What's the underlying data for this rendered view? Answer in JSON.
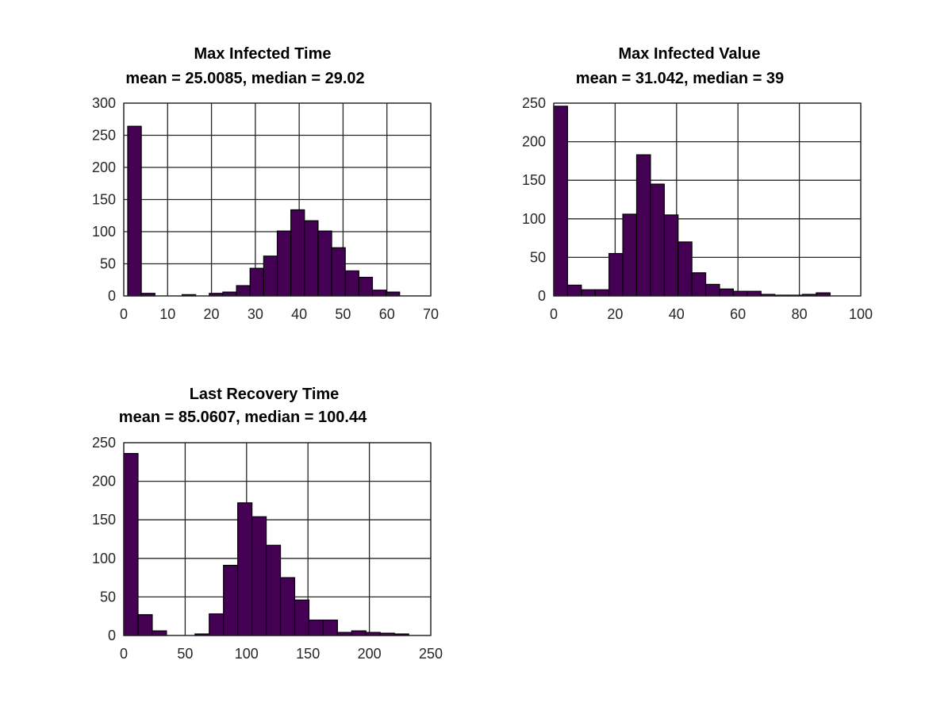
{
  "chart_data": [
    {
      "type": "bar",
      "title": "Max Infected Time",
      "subtitle": "mean = 25.0085, median = 29.02",
      "xlim": [
        0,
        70
      ],
      "ylim": [
        0,
        300
      ],
      "xticks": [
        "0",
        "10",
        "20",
        "30",
        "40",
        "50",
        "60",
        "70"
      ],
      "yticks": [
        "0",
        "50",
        "100",
        "150",
        "200",
        "250",
        "300"
      ],
      "grid": true,
      "bar_color": "#440154",
      "bins": [
        {
          "x0": 0.9,
          "x1": 4.0,
          "value": 264
        },
        {
          "x0": 4.0,
          "x1": 7.1,
          "value": 4
        },
        {
          "x0": 7.1,
          "x1": 10.2,
          "value": 0
        },
        {
          "x0": 10.2,
          "x1": 13.3,
          "value": 0
        },
        {
          "x0": 13.3,
          "x1": 16.4,
          "value": 2
        },
        {
          "x0": 16.4,
          "x1": 19.5,
          "value": 0
        },
        {
          "x0": 19.5,
          "x1": 22.6,
          "value": 4
        },
        {
          "x0": 22.6,
          "x1": 25.7,
          "value": 6
        },
        {
          "x0": 25.7,
          "x1": 28.8,
          "value": 16
        },
        {
          "x0": 28.8,
          "x1": 31.9,
          "value": 43
        },
        {
          "x0": 31.9,
          "x1": 35.0,
          "value": 62
        },
        {
          "x0": 35.0,
          "x1": 38.1,
          "value": 101
        },
        {
          "x0": 38.1,
          "x1": 41.2,
          "value": 134
        },
        {
          "x0": 41.2,
          "x1": 44.3,
          "value": 117
        },
        {
          "x0": 44.3,
          "x1": 47.4,
          "value": 101
        },
        {
          "x0": 47.4,
          "x1": 50.5,
          "value": 75
        },
        {
          "x0": 50.5,
          "x1": 53.6,
          "value": 39
        },
        {
          "x0": 53.6,
          "x1": 56.7,
          "value": 29
        },
        {
          "x0": 56.7,
          "x1": 59.8,
          "value": 9
        },
        {
          "x0": 59.8,
          "x1": 62.9,
          "value": 6
        }
      ]
    },
    {
      "type": "bar",
      "title": "Max Infected Value",
      "subtitle": "mean = 31.042, median = 39",
      "xlim": [
        0,
        100
      ],
      "ylim": [
        0,
        250
      ],
      "xticks": [
        "0",
        "20",
        "40",
        "60",
        "80",
        "100"
      ],
      "yticks": [
        "0",
        "50",
        "100",
        "150",
        "200",
        "250"
      ],
      "grid": true,
      "bar_color": "#440154",
      "bins": [
        {
          "x0": 0,
          "x1": 4.5,
          "value": 246
        },
        {
          "x0": 4.5,
          "x1": 9,
          "value": 14
        },
        {
          "x0": 9,
          "x1": 13.5,
          "value": 8
        },
        {
          "x0": 13.5,
          "x1": 18,
          "value": 8
        },
        {
          "x0": 18,
          "x1": 22.5,
          "value": 55
        },
        {
          "x0": 22.5,
          "x1": 27,
          "value": 106
        },
        {
          "x0": 27,
          "x1": 31.5,
          "value": 183
        },
        {
          "x0": 31.5,
          "x1": 36,
          "value": 145
        },
        {
          "x0": 36,
          "x1": 40.5,
          "value": 105
        },
        {
          "x0": 40.5,
          "x1": 45,
          "value": 70
        },
        {
          "x0": 45,
          "x1": 49.5,
          "value": 30
        },
        {
          "x0": 49.5,
          "x1": 54,
          "value": 15
        },
        {
          "x0": 54,
          "x1": 58.5,
          "value": 9
        },
        {
          "x0": 58.5,
          "x1": 63,
          "value": 6
        },
        {
          "x0": 63,
          "x1": 67.5,
          "value": 6
        },
        {
          "x0": 67.5,
          "x1": 72,
          "value": 2
        },
        {
          "x0": 72,
          "x1": 76.5,
          "value": 1
        },
        {
          "x0": 76.5,
          "x1": 81,
          "value": 1
        },
        {
          "x0": 81,
          "x1": 85.5,
          "value": 2
        },
        {
          "x0": 85.5,
          "x1": 90,
          "value": 4
        }
      ]
    },
    {
      "type": "bar",
      "title": "Last Recovery Time",
      "subtitle": "mean = 85.0607, median = 100.44",
      "xlim": [
        0,
        250
      ],
      "ylim": [
        0,
        250
      ],
      "xticks": [
        "0",
        "50",
        "100",
        "150",
        "200",
        "250"
      ],
      "yticks": [
        "0",
        "50",
        "100",
        "150",
        "200",
        "250"
      ],
      "grid": true,
      "bar_color": "#440154",
      "bins": [
        {
          "x0": 0,
          "x1": 11.6,
          "value": 236
        },
        {
          "x0": 11.6,
          "x1": 23.2,
          "value": 27
        },
        {
          "x0": 23.2,
          "x1": 34.8,
          "value": 6
        },
        {
          "x0": 34.8,
          "x1": 46.4,
          "value": 0
        },
        {
          "x0": 46.4,
          "x1": 58.0,
          "value": 0
        },
        {
          "x0": 58.0,
          "x1": 69.6,
          "value": 2
        },
        {
          "x0": 69.6,
          "x1": 81.2,
          "value": 28
        },
        {
          "x0": 81.2,
          "x1": 92.8,
          "value": 91
        },
        {
          "x0": 92.8,
          "x1": 104.4,
          "value": 172
        },
        {
          "x0": 104.4,
          "x1": 116.0,
          "value": 154
        },
        {
          "x0": 116.0,
          "x1": 127.6,
          "value": 117
        },
        {
          "x0": 127.6,
          "x1": 139.2,
          "value": 75
        },
        {
          "x0": 139.2,
          "x1": 150.8,
          "value": 46
        },
        {
          "x0": 150.8,
          "x1": 162.4,
          "value": 20
        },
        {
          "x0": 162.4,
          "x1": 174.0,
          "value": 20
        },
        {
          "x0": 174.0,
          "x1": 185.6,
          "value": 4
        },
        {
          "x0": 185.6,
          "x1": 197.2,
          "value": 6
        },
        {
          "x0": 197.2,
          "x1": 208.8,
          "value": 4
        },
        {
          "x0": 208.8,
          "x1": 220.4,
          "value": 3
        },
        {
          "x0": 220.4,
          "x1": 232.0,
          "value": 2
        }
      ]
    }
  ]
}
